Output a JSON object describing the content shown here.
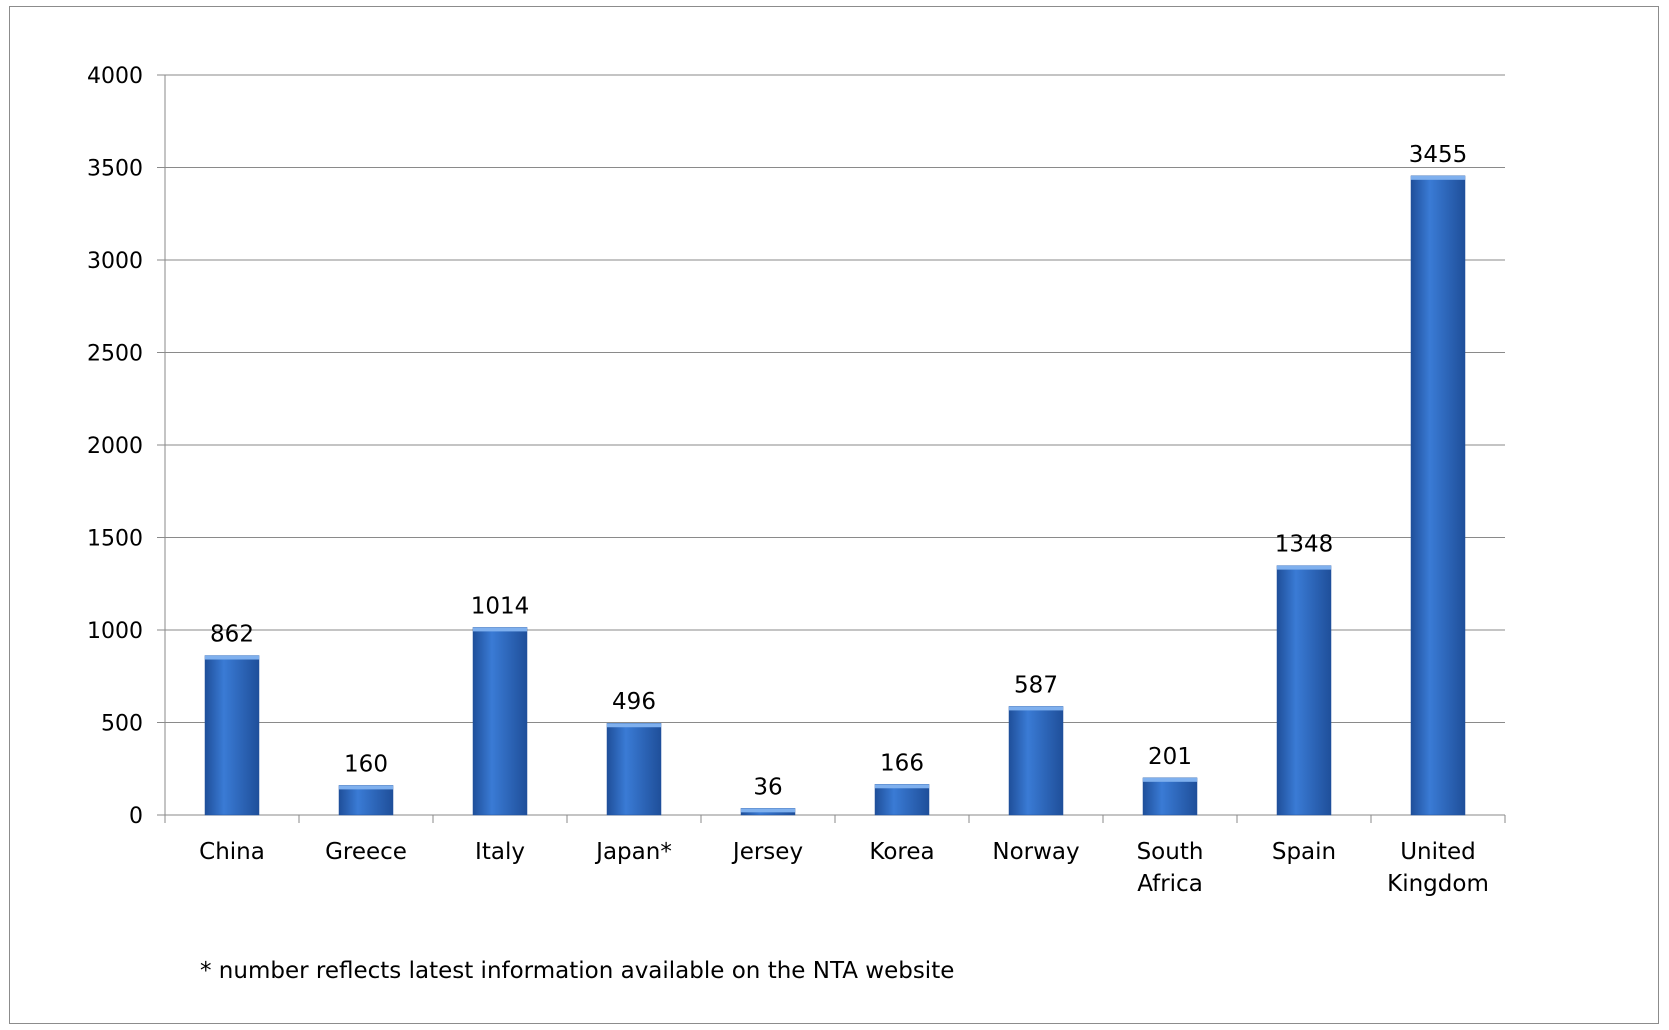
{
  "chart_data": {
    "type": "bar",
    "title": "",
    "xlabel": "",
    "ylabel": "",
    "categories": [
      "China",
      "Greece",
      "Italy",
      "Japan*",
      "Jersey",
      "Korea",
      "Norway",
      "South Africa",
      "Spain",
      "United Kingdom"
    ],
    "category_lines": [
      [
        "China"
      ],
      [
        "Greece"
      ],
      [
        "Italy"
      ],
      [
        "Japan*"
      ],
      [
        "Jersey"
      ],
      [
        "Korea"
      ],
      [
        "Norway"
      ],
      [
        "South",
        "Africa"
      ],
      [
        "Spain"
      ],
      [
        "United",
        "Kingdom"
      ]
    ],
    "values": [
      862,
      160,
      1014,
      496,
      36,
      166,
      587,
      201,
      1348,
      3455
    ],
    "data_labels": [
      "862",
      "160",
      "1014",
      "496",
      "36",
      "166",
      "587",
      "201",
      "1348",
      "3455"
    ],
    "ylim": [
      0,
      4000
    ],
    "yticks": [
      0,
      500,
      1000,
      1500,
      2000,
      2500,
      3000,
      3500,
      4000
    ],
    "ytick_labels": [
      "0",
      "500",
      "1000",
      "1500",
      "2000",
      "2500",
      "3000",
      "3500",
      "4000"
    ],
    "grid": true,
    "legend": "none",
    "bar_color": "#3a7bd5",
    "bar_color_dark": "#1f4f9a",
    "footnote": "* number reflects latest information available on the NTA website"
  }
}
